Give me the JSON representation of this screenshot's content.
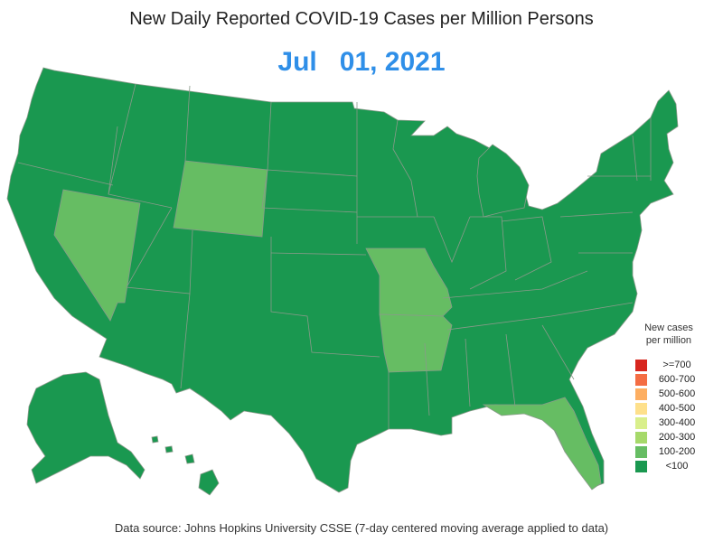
{
  "header": {
    "title": "New Daily Reported COVID-19 Cases per Million Persons",
    "date": "Jul   01, 2021"
  },
  "legend": {
    "title_line1": "New cases",
    "title_line2": "per million",
    "items": [
      {
        "label": ">=700",
        "color": "#d7261e"
      },
      {
        "label": "600-700",
        "color": "#f46d43"
      },
      {
        "label": "500-600",
        "color": "#fdae61"
      },
      {
        "label": "400-500",
        "color": "#fee08b"
      },
      {
        "label": "300-400",
        "color": "#d9ef8b"
      },
      {
        "label": "200-300",
        "color": "#a6d96a"
      },
      {
        "label": "100-200",
        "color": "#66bd63"
      },
      {
        "label": "<100",
        "color": "#1a9850"
      }
    ]
  },
  "map": {
    "highlight_states": [
      {
        "name": "Nevada",
        "category": "100-200"
      },
      {
        "name": "Wyoming",
        "category": "100-200"
      },
      {
        "name": "Missouri",
        "category": "100-200"
      },
      {
        "name": "Arkansas",
        "category": "100-200"
      },
      {
        "name": "Florida",
        "category": "100-200"
      }
    ],
    "default_category": "<100"
  },
  "footer": {
    "source": "Data source: Johns Hopkins University CSSE (7-day centered moving average applied to data)"
  }
}
